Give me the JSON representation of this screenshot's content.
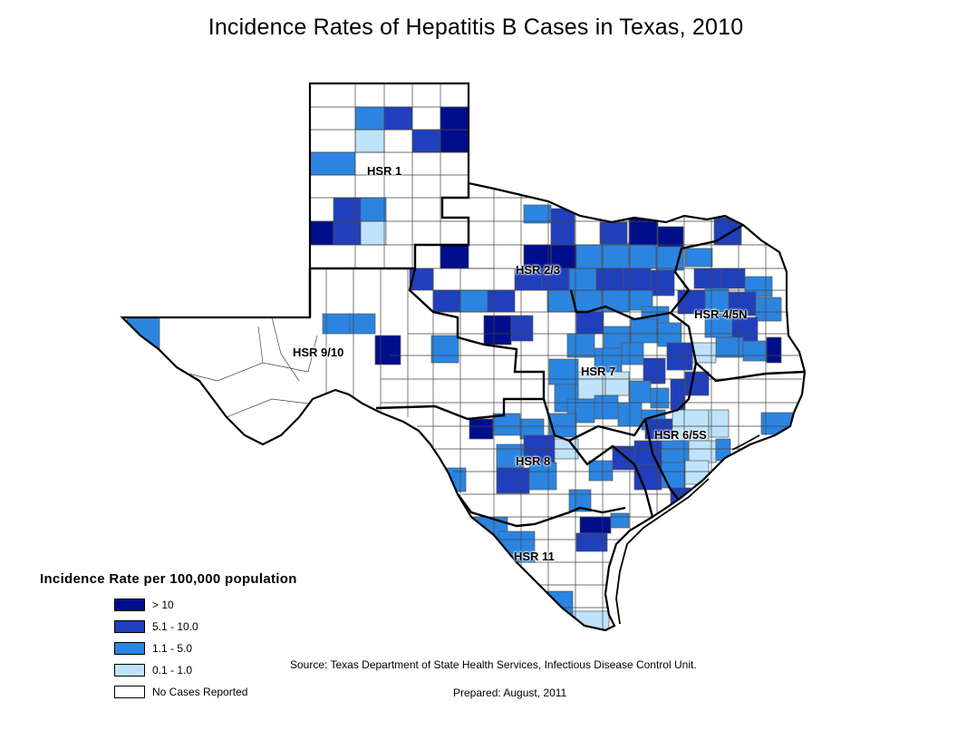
{
  "title": "Incidence Rates of Hepatitis B Cases in Texas, 2010",
  "colors": {
    "gt10": "#000e8c",
    "r5_10": "#1f3fbd",
    "r1_5": "#2b85e0",
    "r0_1": "#bfe3fa",
    "none": "#ffffff"
  },
  "regions": [
    {
      "label": "HSR 1"
    },
    {
      "label": "HSR 2/3"
    },
    {
      "label": "HSR 4/5N"
    },
    {
      "label": "HSR 9/10"
    },
    {
      "label": "HSR 7"
    },
    {
      "label": "HSR 6/5S"
    },
    {
      "label": "HSR 8"
    },
    {
      "label": "HSR 11"
    }
  ],
  "legend": {
    "title": "Incidence Rate per 100,000 population",
    "items": [
      {
        "label": "> 10",
        "color": "#000e8c"
      },
      {
        "label": "5.1 - 10.0",
        "color": "#1f3fbd"
      },
      {
        "label": "1.1 - 5.0",
        "color": "#2b85e0"
      },
      {
        "label": "0.1 - 1.0",
        "color": "#bfe3fa"
      },
      {
        "label": "No Cases Reported",
        "color": "#ffffff"
      }
    ]
  },
  "source": "Source: Texas Department of State Health Services, Infectious Disease Control Unit.",
  "prepared": "Prepared: August, 2011"
}
